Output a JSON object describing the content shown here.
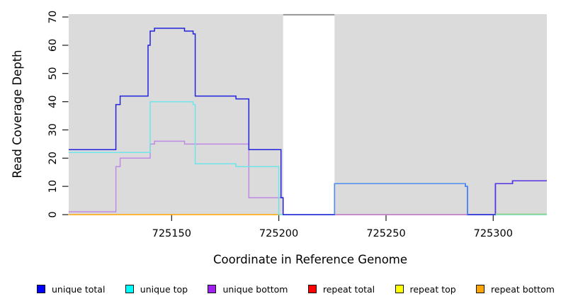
{
  "chart_data": {
    "type": "line",
    "subtype": "step-coverage",
    "title": "",
    "xlabel": "Coordinate in Reference Genome",
    "ylabel": "Read Coverage Depth",
    "xlim": [
      725102,
      725325
    ],
    "ylim": [
      0,
      70
    ],
    "grid": false,
    "legend_position": "bottom",
    "xticks": [
      {
        "value": 725150,
        "label": "725150"
      },
      {
        "value": 725200,
        "label": "725200"
      },
      {
        "value": 725250,
        "label": "725250"
      },
      {
        "value": 725300,
        "label": "725300"
      }
    ],
    "yticks": [
      {
        "value": 0,
        "label": "0"
      },
      {
        "value": 10,
        "label": "10"
      },
      {
        "value": 20,
        "label": "20"
      },
      {
        "value": 30,
        "label": "30"
      },
      {
        "value": 40,
        "label": "40"
      },
      {
        "value": 50,
        "label": "50"
      },
      {
        "value": 60,
        "label": "60"
      },
      {
        "value": 70,
        "label": "70"
      }
    ],
    "colors": {
      "panel": "#DBDBDB",
      "gap_border": "#8E8E8E",
      "axis": "#1a1a1a"
    },
    "background_regions": [
      {
        "from": 725102,
        "to": 725202
      },
      {
        "from": 725226,
        "to": 725325
      }
    ],
    "gap_region": {
      "from": 725202,
      "to": 725226
    },
    "series": [
      {
        "name": "unique total",
        "legend_color": "#0000FF",
        "line_color": "#2222DD",
        "steps": [
          [
            725102,
            23
          ],
          [
            725124,
            39
          ],
          [
            725126,
            42
          ],
          [
            725139,
            60
          ],
          [
            725140,
            65
          ],
          [
            725142,
            66
          ],
          [
            725156,
            65
          ],
          [
            725160,
            64
          ],
          [
            725161,
            42
          ],
          [
            725180,
            41
          ],
          [
            725186,
            23
          ],
          [
            725201,
            6
          ],
          [
            725202,
            0
          ],
          [
            725226,
            11
          ],
          [
            725287,
            10
          ],
          [
            725288,
            0
          ],
          [
            725301,
            11
          ],
          [
            725309,
            12
          ],
          [
            725325,
            12
          ]
        ]
      },
      {
        "name": "unique top",
        "legend_color": "#00FFFF",
        "line_color": "#6FE4E9",
        "steps": [
          [
            725102,
            22
          ],
          [
            725140,
            40
          ],
          [
            725160,
            39
          ],
          [
            725161,
            18
          ],
          [
            725180,
            17
          ],
          [
            725200,
            0
          ],
          [
            725226,
            11
          ],
          [
            725287,
            10
          ],
          [
            725288,
            0
          ],
          [
            725325,
            0
          ]
        ]
      },
      {
        "name": "unique bottom",
        "legend_color": "#A020F0",
        "line_color": "#BE8BE4",
        "steps": [
          [
            725102,
            1
          ],
          [
            725124,
            17
          ],
          [
            725126,
            20
          ],
          [
            725140,
            25
          ],
          [
            725142,
            26
          ],
          [
            725156,
            25
          ],
          [
            725186,
            6
          ],
          [
            725202,
            0
          ],
          [
            725301,
            11
          ],
          [
            725309,
            12
          ],
          [
            725325,
            12
          ]
        ]
      },
      {
        "name": "repeat total",
        "legend_color": "#FF0000",
        "line_color": "#D65069",
        "steps": [
          [
            725102,
            0
          ],
          [
            725325,
            0
          ]
        ]
      },
      {
        "name": "repeat top",
        "legend_color": "#FFFF00",
        "line_color": "#F0F07A",
        "steps": [
          [
            725102,
            0
          ],
          [
            725325,
            0
          ]
        ]
      },
      {
        "name": "repeat bottom",
        "legend_color": "#FFA500",
        "line_color": "#FFA500",
        "steps": [
          [
            725102,
            0
          ],
          [
            725325,
            0
          ]
        ]
      }
    ],
    "polyline_order": [
      "unique bottom",
      "unique top",
      "unique total"
    ],
    "baseline_segments": [
      {
        "series": "repeat bottom",
        "from": 725102,
        "to": 725325,
        "color": "#FFA500"
      },
      {
        "series": "repeat total",
        "from": 725226,
        "to": 725301,
        "color": "#D65069"
      }
    ],
    "visual_overlaps": [
      {
        "label": "unique total + unique top",
        "color": "#4E8CF2",
        "dy": 0,
        "steps": [
          [
            725226,
            0
          ],
          [
            725226,
            11
          ],
          [
            725287,
            10
          ],
          [
            725288,
            0
          ]
        ]
      },
      {
        "label": "unique total + unique bottom",
        "color": "#5633E3",
        "dy": 0,
        "steps": [
          [
            725301,
            0
          ],
          [
            725301,
            11
          ],
          [
            725309,
            12
          ],
          [
            725325,
            12
          ]
        ]
      },
      {
        "label": "unique top + repeat top at zero",
        "color": "#8FD48F",
        "dy": -0.8,
        "steps": [
          [
            725301,
            0
          ],
          [
            725325,
            0
          ]
        ]
      }
    ]
  }
}
